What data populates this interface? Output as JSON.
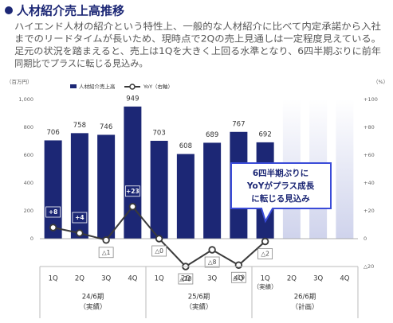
{
  "title": "人材紹介売上高推移",
  "description": [
    "ハイエンド人材の紹介という特性上、一般的な人材紹介に比べて内定承諾から入社",
    "までのリードタイムが長いため、現時点で2Qの売上見通しは一定程度見えている。",
    "足元の状況を踏まえると、売上は1Qを大きく上回る水準となり、6四半期ぶりに前年",
    "同期比でプラスに転じる見込み。"
  ],
  "chart_data": {
    "type": "bar",
    "y_unit": "（百万円）",
    "y2_unit": "（%）",
    "groups": [
      {
        "name": "24/6期",
        "note": "（実績）",
        "categories": [
          "1Q",
          "2Q",
          "3Q",
          "4Q"
        ],
        "category_notes": [
          null,
          null,
          null,
          null
        ]
      },
      {
        "name": "25/6期",
        "note": "（実績）",
        "categories": [
          "1Q",
          "2Q",
          "3Q",
          "4Q"
        ],
        "category_notes": [
          null,
          null,
          null,
          null
        ]
      },
      {
        "name": "26/6期",
        "note": "（計画）",
        "categories": [
          "1Q",
          "2Q",
          "3Q",
          "4Q"
        ],
        "category_notes": [
          "（実績）",
          null,
          null,
          null
        ]
      }
    ],
    "series": [
      {
        "name": "人材紹介売上高",
        "type": "bar",
        "color": "#1c2775",
        "values": [
          706,
          758,
          746,
          949,
          703,
          608,
          689,
          767,
          692,
          null,
          null,
          null
        ]
      },
      {
        "name": "YoY（右軸）",
        "type": "line",
        "axis": "y2",
        "color": "#3a3a3a",
        "values": [
          8,
          4,
          -1,
          23,
          0,
          -20,
          -8,
          -19,
          -2,
          null,
          null,
          null
        ],
        "value_labels": [
          "+8",
          "+4",
          "△1",
          "+23",
          "△0",
          "△20",
          "△8",
          "△19",
          "△2",
          null,
          null,
          null
        ]
      }
    ],
    "ylim": [
      -200,
      1000
    ],
    "yticks": [
      0,
      200,
      400,
      600,
      800,
      {
        "value": 1000,
        "label": "1,000"
      }
    ],
    "y2lim": [
      -20,
      100
    ],
    "y2ticks": [
      {
        "value": -20,
        "label": "△20"
      },
      0,
      {
        "value": 20,
        "label": "+20"
      },
      {
        "value": 40,
        "label": "+40"
      },
      {
        "value": 60,
        "label": "+60"
      },
      {
        "value": 80,
        "label": "+80"
      },
      {
        "value": 100,
        "label": "+100"
      }
    ],
    "callout": [
      "6四半期ぶりに",
      "YoYがプラス成長",
      "に転じる見込み"
    ]
  }
}
